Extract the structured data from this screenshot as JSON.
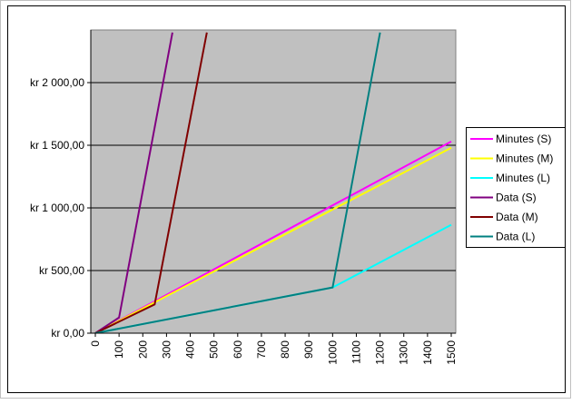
{
  "chart_data": {
    "type": "line",
    "series": [
      {
        "name": "Minutes (S)",
        "color": "#ff00ff",
        "x": [
          0,
          1500
        ],
        "values": [
          0,
          1530
        ]
      },
      {
        "name": "Minutes (M)",
        "color": "#ffff00",
        "x": [
          0,
          1500
        ],
        "values": [
          0,
          1480
        ]
      },
      {
        "name": "Minutes (L)",
        "color": "#00ffff",
        "x": [
          0,
          1000,
          1500
        ],
        "values": [
          0,
          365,
          865
        ]
      },
      {
        "name": "Data (S)",
        "color": "#800080",
        "x": [
          0,
          100,
          325
        ],
        "values": [
          0,
          125,
          2400
        ]
      },
      {
        "name": "Data (M)",
        "color": "#800000",
        "x": [
          0,
          250,
          470
        ],
        "values": [
          0,
          230,
          2400
        ]
      },
      {
        "name": "Data (L)",
        "color": "#008080",
        "x": [
          0,
          1000,
          1200
        ],
        "values": [
          0,
          365,
          2400
        ]
      }
    ],
    "xlim": [
      0,
      1500
    ],
    "xticks": [
      0,
      100,
      200,
      300,
      400,
      500,
      600,
      700,
      800,
      900,
      1000,
      1100,
      1200,
      1300,
      1400,
      1500
    ],
    "ylim": [
      0,
      2400
    ],
    "yticks": [
      {
        "value": 0,
        "label": "kr 0,00"
      },
      {
        "value": 500,
        "label": "kr 500,00"
      },
      {
        "value": 1000,
        "label": "kr 1 000,00"
      },
      {
        "value": 1500,
        "label": "kr 1 500,00"
      },
      {
        "value": 2000,
        "label": "kr 2 000,00"
      }
    ],
    "grid": true,
    "legend": "right"
  }
}
